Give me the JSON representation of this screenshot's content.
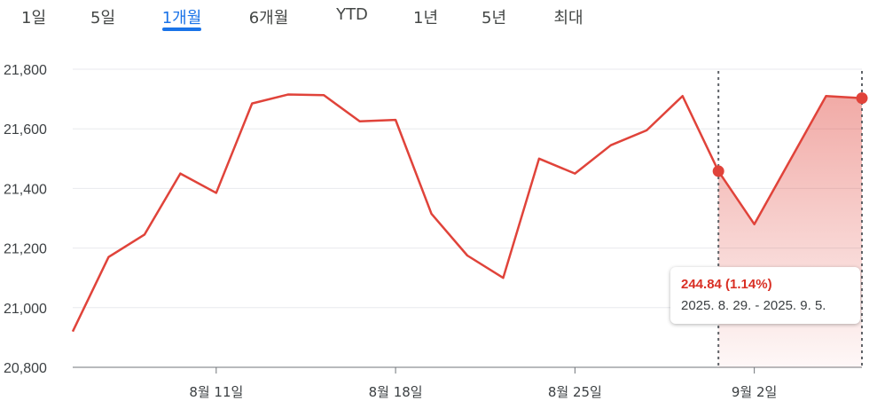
{
  "tabs": [
    {
      "label": "1일",
      "active": false
    },
    {
      "label": "5일",
      "active": false
    },
    {
      "label": "1개월",
      "active": true
    },
    {
      "label": "6개월",
      "active": false
    },
    {
      "label": "YTD",
      "active": false
    },
    {
      "label": "1년",
      "active": false
    },
    {
      "label": "5년",
      "active": false
    },
    {
      "label": "최대",
      "active": false
    }
  ],
  "colors": {
    "line": "#e0433a",
    "accent": "#1a73e8",
    "tooltip_value": "#d93025"
  },
  "tooltip": {
    "change": "244.84 (1.14%)",
    "range": "2025. 8. 29. - 2025. 9. 5."
  },
  "chart_data": {
    "type": "line",
    "ylim": [
      20800,
      21800
    ],
    "yticks": [
      "21,800",
      "21,600",
      "21,400",
      "21,200",
      "21,000",
      "20,800"
    ],
    "ytick_values": [
      21800,
      21600,
      21400,
      21200,
      21000,
      20800
    ],
    "xtick_labels": [
      "8월 11일",
      "8월 18일",
      "8월 25일",
      "9월 2일"
    ],
    "xtick_index": [
      4,
      9,
      14,
      19
    ],
    "values": [
      20920,
      21170,
      21245,
      21450,
      21385,
      21685,
      21715,
      21713,
      21625,
      21630,
      21315,
      21175,
      21100,
      21500,
      21450,
      21545,
      21595,
      21710,
      21458,
      21280,
      21495,
      21710,
      21703
    ],
    "selection": {
      "start_index": 18,
      "end_index": 22
    },
    "grid": true
  }
}
